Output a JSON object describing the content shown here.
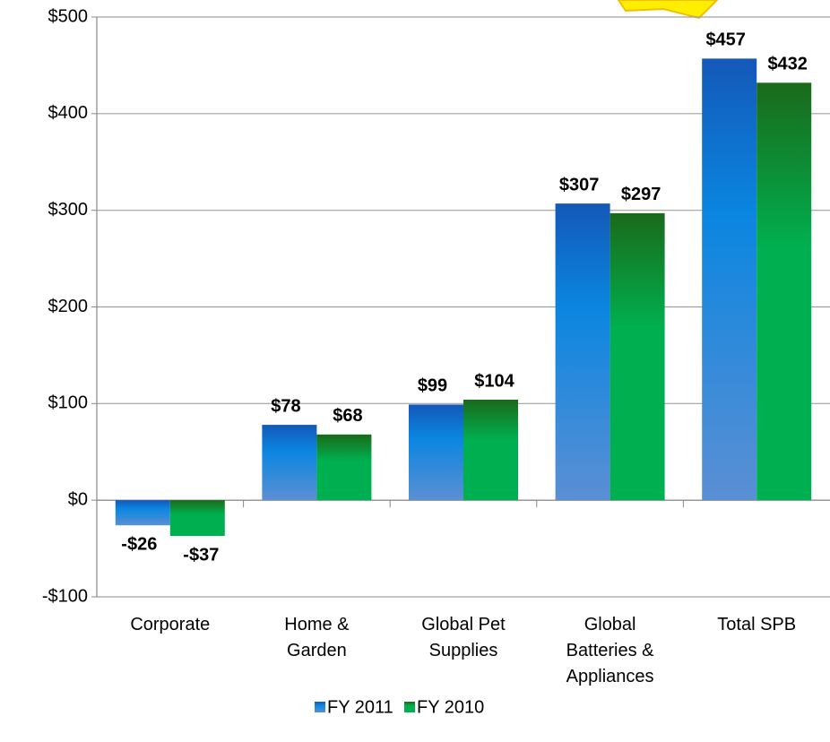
{
  "chart_data": {
    "type": "bar",
    "categories": [
      "Corporate",
      "Home & Garden",
      "Global Pet Supplies",
      "Global Batteries & Appliances",
      "Total SPB"
    ],
    "series": [
      {
        "name": "FY 2011",
        "color": "#0a86e0",
        "values": [
          -26,
          78,
          99,
          307,
          457
        ],
        "value_labels": [
          "-$26",
          "$78",
          "$99",
          "$307",
          "$457"
        ]
      },
      {
        "name": "FY 2010",
        "color": "#00b050",
        "values": [
          -37,
          68,
          104,
          297,
          432
        ],
        "value_labels": [
          "-$37",
          "$68",
          "$104",
          "$297",
          "$432"
        ]
      }
    ],
    "ylim": [
      -100,
      500
    ],
    "yticks": [
      {
        "value": -100,
        "label": "-$100"
      },
      {
        "value": 0,
        "label": "$0"
      },
      {
        "value": 100,
        "label": "$100"
      },
      {
        "value": 200,
        "label": "$200"
      },
      {
        "value": 300,
        "label": "$300"
      },
      {
        "value": 400,
        "label": "$400"
      },
      {
        "value": 500,
        "label": "$500"
      }
    ],
    "grid": true,
    "legend": "bottom"
  }
}
